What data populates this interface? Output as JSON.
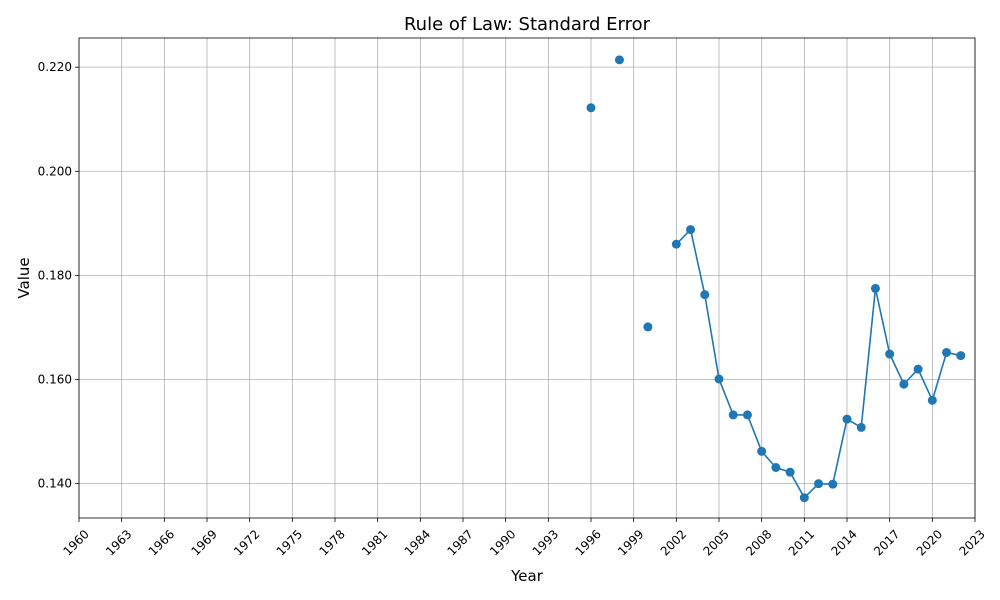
{
  "chart_data": {
    "type": "line",
    "title": "Rule of Law: Standard Error",
    "xlabel": "Year",
    "ylabel": "Value",
    "xlim": [
      1960,
      2023
    ],
    "ylim": [
      0.1334,
      0.2256
    ],
    "grid": true,
    "x_ticks": [
      1960,
      1963,
      1966,
      1969,
      1972,
      1975,
      1978,
      1981,
      1984,
      1987,
      1990,
      1993,
      1996,
      1999,
      2002,
      2005,
      2008,
      2011,
      2014,
      2017,
      2020,
      2023
    ],
    "y_ticks": [
      0.14,
      0.16,
      0.18,
      0.2,
      0.22
    ],
    "y_tick_labels": [
      "0.140",
      "0.160",
      "0.180",
      "0.200",
      "0.220"
    ],
    "color": "#1f77b4",
    "marker": "circle",
    "series": [
      {
        "x": [
          1996,
          1998,
          2000,
          2002,
          2003,
          2004,
          2005,
          2006,
          2007,
          2008,
          2009,
          2010,
          2011,
          2012,
          2013,
          2014,
          2015,
          2016,
          2017,
          2018,
          2019,
          2020,
          2021,
          2022
        ],
        "values": [
          0.2122,
          0.2214,
          0.1701,
          0.186,
          0.1888,
          0.1763,
          0.1601,
          0.1532,
          0.1532,
          0.1462,
          0.1431,
          0.1422,
          0.1373,
          0.14,
          0.1399,
          0.1524,
          0.1508,
          0.1775,
          0.1649,
          0.1591,
          0.162,
          0.156,
          0.1652,
          0.1646
        ]
      }
    ]
  }
}
